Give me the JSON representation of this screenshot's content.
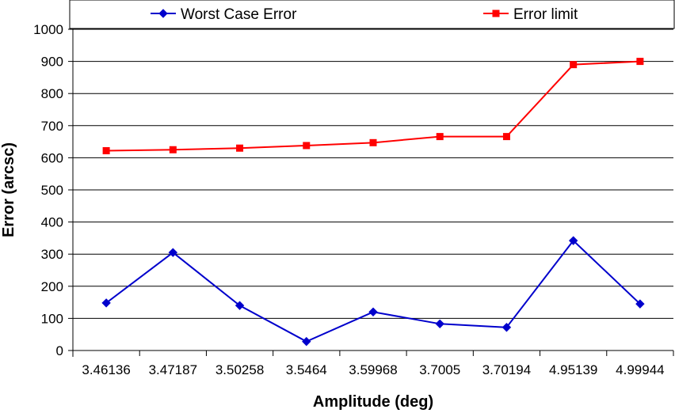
{
  "chart_data": {
    "type": "line",
    "title": "",
    "xlabel": "Amplitude (deg)",
    "ylabel": "Error (arcsc)",
    "categories": [
      "3.46136",
      "3.47187",
      "3.50258",
      "3.5464",
      "3.59968",
      "3.7005",
      "3.70194",
      "4.95139",
      "4.99944"
    ],
    "ylim": [
      0,
      1000
    ],
    "yticks": [
      0,
      100,
      200,
      300,
      400,
      500,
      600,
      700,
      800,
      900,
      1000
    ],
    "grid": true,
    "legend_position": "top",
    "series": [
      {
        "name": "Worst Case Error",
        "color": "#0000cc",
        "marker": "diamond",
        "values": [
          148,
          305,
          140,
          28,
          120,
          83,
          72,
          342,
          145
        ]
      },
      {
        "name": "Error limit",
        "color": "#ff0000",
        "marker": "square",
        "values": [
          622,
          625,
          630,
          638,
          647,
          666,
          666,
          890,
          900
        ]
      }
    ]
  }
}
